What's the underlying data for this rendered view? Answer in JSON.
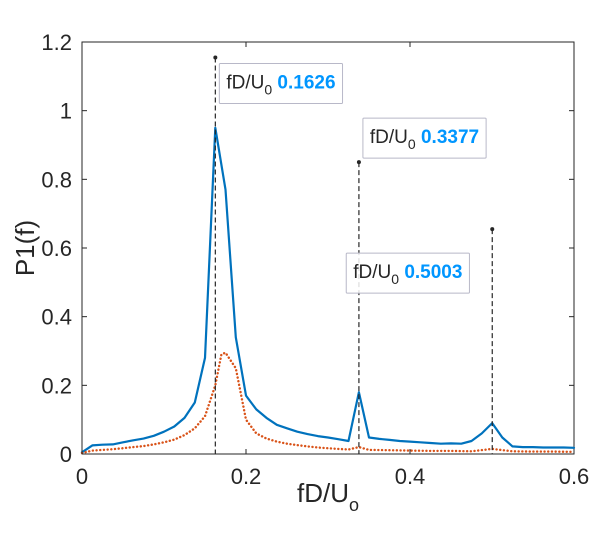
{
  "chart_data": {
    "type": "line",
    "xlabel": "fD/U",
    "xlabel_subscript": "o",
    "ylabel": "P1(f)",
    "xlim": [
      0,
      0.6
    ],
    "ylim": [
      0,
      1.2
    ],
    "xticks": [
      0,
      0.2,
      0.4,
      0.6
    ],
    "xtick_labels": [
      "0",
      "0.2",
      "0.4",
      "0.6"
    ],
    "yticks": [
      0,
      0.2,
      0.4,
      0.6,
      0.8,
      1,
      1.2
    ],
    "ytick_labels": [
      "0",
      "0.2",
      "0.4",
      "0.6",
      "0.8",
      "1",
      "1.2"
    ],
    "grid": false,
    "series": [
      {
        "style": "solid",
        "color": "#0072BD",
        "x": [
          0,
          0.0125,
          0.025,
          0.0375,
          0.05,
          0.0625,
          0.075,
          0.0875,
          0.1,
          0.1125,
          0.125,
          0.1375,
          0.15,
          0.1626,
          0.175,
          0.1875,
          0.2,
          0.2125,
          0.225,
          0.2375,
          0.25,
          0.2625,
          0.275,
          0.2875,
          0.3,
          0.3125,
          0.325,
          0.3377,
          0.35,
          0.3625,
          0.375,
          0.3875,
          0.4,
          0.4125,
          0.425,
          0.4375,
          0.45,
          0.4625,
          0.475,
          0.4875,
          0.5003,
          0.5125,
          0.525,
          0.5375,
          0.55,
          0.5625,
          0.575,
          0.5875,
          0.6
        ],
        "y": [
          0.005,
          0.025,
          0.027,
          0.028,
          0.034,
          0.04,
          0.045,
          0.053,
          0.065,
          0.08,
          0.105,
          0.15,
          0.28,
          0.95,
          0.77,
          0.34,
          0.17,
          0.13,
          0.105,
          0.085,
          0.075,
          0.065,
          0.058,
          0.052,
          0.048,
          0.043,
          0.038,
          0.18,
          0.048,
          0.044,
          0.041,
          0.038,
          0.036,
          0.034,
          0.032,
          0.03,
          0.031,
          0.03,
          0.038,
          0.06,
          0.09,
          0.048,
          0.022,
          0.02,
          0.02,
          0.019,
          0.019,
          0.019,
          0.018
        ]
      },
      {
        "style": "dotted",
        "color": "#D95319",
        "x": [
          0,
          0.0125,
          0.025,
          0.0375,
          0.05,
          0.0625,
          0.075,
          0.0875,
          0.1,
          0.1125,
          0.125,
          0.1375,
          0.15,
          0.1626,
          0.17,
          0.175,
          0.1875,
          0.2,
          0.2125,
          0.225,
          0.2375,
          0.25,
          0.2625,
          0.275,
          0.2875,
          0.3,
          0.3125,
          0.325,
          0.3377,
          0.35,
          0.375,
          0.4,
          0.425,
          0.45,
          0.475,
          0.5003,
          0.525,
          0.55,
          0.575,
          0.6
        ],
        "y": [
          0.003,
          0.01,
          0.012,
          0.014,
          0.017,
          0.02,
          0.023,
          0.028,
          0.034,
          0.042,
          0.055,
          0.075,
          0.11,
          0.2,
          0.29,
          0.295,
          0.25,
          0.1,
          0.06,
          0.045,
          0.036,
          0.03,
          0.026,
          0.022,
          0.019,
          0.017,
          0.015,
          0.013,
          0.02,
          0.012,
          0.011,
          0.01,
          0.009,
          0.009,
          0.008,
          0.015,
          0.008,
          0.007,
          0.007,
          0.006
        ]
      }
    ],
    "annotations": [
      {
        "label": "fD/U",
        "label_subscript": "0",
        "value": "0.1626",
        "x": 0.1626,
        "y": 1.155
      },
      {
        "label": "fD/U",
        "label_subscript": "0",
        "value": "0.3377",
        "x": 0.3377,
        "y": 0.85
      },
      {
        "label": "fD/U",
        "label_subscript": "0",
        "value": "0.5003",
        "x": 0.5003,
        "y": 0.655
      }
    ],
    "annotation_value_color": "#0096FF"
  }
}
